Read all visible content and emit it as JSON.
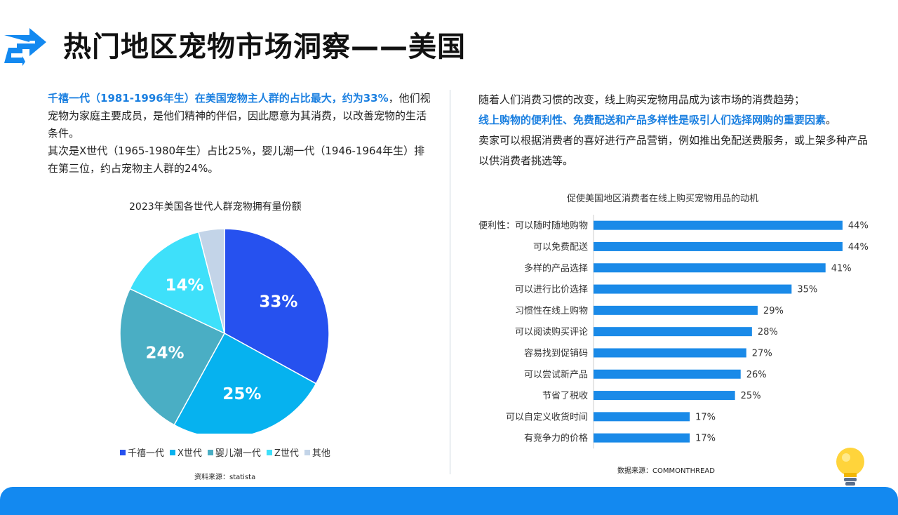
{
  "header": {
    "title": "热门地区宠物市场洞察——美国"
  },
  "left_text": {
    "highlight": "千禧一代（1981-1996年生）在美国宠物主人群的占比最大，约为33%",
    "line1_rest": "，他们视宠物为家庭主要成员，是他们精神的伴侣，因此愿意为其消费，以改善宠物的生活条件。",
    "line2": "其次是X世代（1965-1980年生）占比25%，婴儿潮一代（1946-1964年生）排在第三位，约占宠物主人群的24%。"
  },
  "right_text": {
    "line1": "随着人们消费习惯的改变，线上购买宠物用品成为该市场的消费趋势；",
    "highlight": "线上购物的便利性、免费配送和产品多样性是吸引人们选择网购的重要因素",
    "highlight_end": "。",
    "line3": "卖家可以根据消费者的喜好进行产品营销，例如推出免配送费服务，或上架多种产品以供消费者挑选等。"
  },
  "sources": {
    "pie": "资料来源：statista",
    "bar": "数据来源：COMMONTHREAD"
  },
  "chart_data": [
    {
      "type": "pie",
      "title": "2023年美国各世代人群宠物拥有量份额",
      "categories": [
        "千禧一代",
        "X世代",
        "婴儿潮一代",
        "Z世代",
        "其他"
      ],
      "values": [
        33,
        25,
        24,
        14,
        4
      ],
      "labels": [
        "33%",
        "25%",
        "24%",
        "14%",
        ""
      ],
      "colors": [
        "#2651ef",
        "#06b2ef",
        "#4aaec4",
        "#3ee0fa",
        "#c3d4e8"
      ],
      "legend": "bottom"
    },
    {
      "type": "bar",
      "orientation": "horizontal",
      "title": "促使美国地区消费者在线上购买宠物用品的动机",
      "categories": [
        "便利性：可以随时随地购物",
        "可以免费配送",
        "多样的产品选择",
        "可以进行比价选择",
        "习惯性在线上购物",
        "可以阅读购买评论",
        "容易找到促销码",
        "可以尝试新产品",
        "节省了税收",
        "可以自定义收货时间",
        "有竞争力的价格"
      ],
      "values": [
        44,
        44,
        41,
        35,
        29,
        28,
        27,
        26,
        25,
        17,
        17
      ],
      "labels": [
        "44%",
        "44%",
        "41%",
        "35%",
        "29%",
        "28%",
        "27%",
        "26%",
        "25%",
        "17%",
        "17%"
      ],
      "color": "#1a8ae8",
      "xlim": [
        0,
        50
      ]
    }
  ]
}
